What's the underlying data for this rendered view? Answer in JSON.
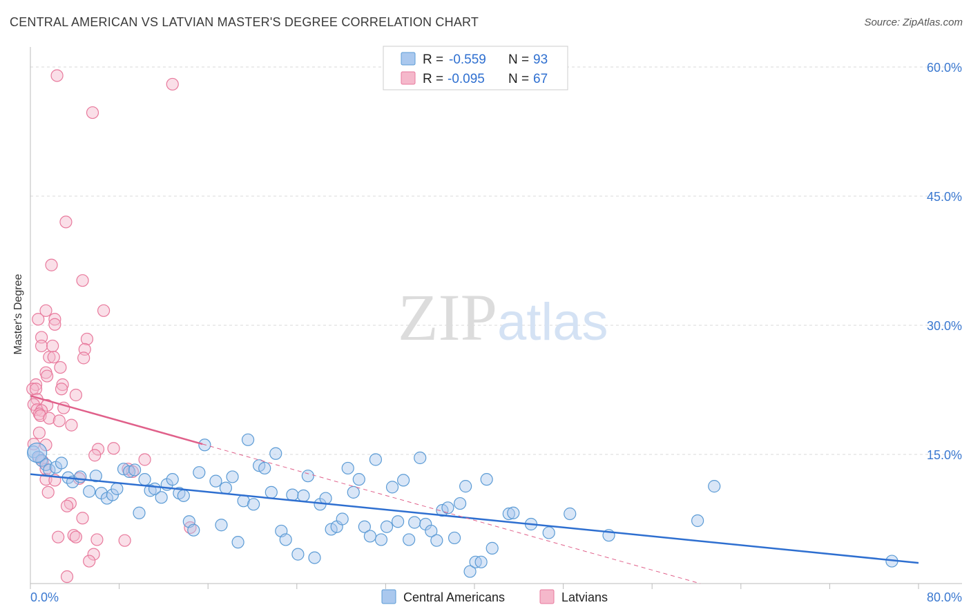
{
  "title": "CENTRAL AMERICAN VS LATVIAN MASTER'S DEGREE CORRELATION CHART",
  "source": "Source: ZipAtlas.com",
  "watermark": {
    "part1": "ZIP",
    "part2": "atlas"
  },
  "colors": {
    "blue": "#5b9bd5",
    "blue_fill": "#aac8ee",
    "blue_line": "#2e6fd0",
    "pink": "#e8799c",
    "pink_fill": "#f5b8cb",
    "pink_line": "#e0608a",
    "axis_text": "#3a78d0",
    "grid": "#d8d8d8"
  },
  "legend": {
    "rows": [
      {
        "r_label": "R =",
        "r_value": "-0.559",
        "n_label": "N =",
        "n_value": "93"
      },
      {
        "r_label": "R =",
        "r_value": "-0.095",
        "n_label": "N =",
        "n_value": "67"
      }
    ],
    "bottom": [
      "Central Americans",
      "Latvians"
    ]
  },
  "chart_data": {
    "type": "scatter",
    "title": "CENTRAL AMERICAN VS LATVIAN MASTER'S DEGREE CORRELATION CHART",
    "xlabel": "",
    "ylabel": "Master's Degree",
    "xlim": [
      0,
      80
    ],
    "ylim": [
      0,
      60
    ],
    "x_tick_labels": [
      "0.0%",
      "80.0%"
    ],
    "y_ticks": [
      15,
      30,
      45,
      60
    ],
    "y_tick_labels": [
      "15.0%",
      "30.0%",
      "45.0%",
      "60.0%"
    ],
    "grid": true,
    "series": [
      {
        "name": "Central Americans",
        "r": -0.559,
        "n": 93,
        "trend": {
          "x1": 0,
          "y1": 12.7,
          "x2": 80,
          "y2": 2.4
        },
        "points": [
          [
            0.3,
            15.3
          ],
          [
            0.7,
            14.7
          ],
          [
            1.0,
            14.3
          ],
          [
            1.4,
            13.8
          ],
          [
            1.7,
            13.2
          ],
          [
            2.3,
            13.5
          ],
          [
            2.8,
            14.0
          ],
          [
            3.4,
            12.3
          ],
          [
            3.8,
            11.8
          ],
          [
            4.5,
            12.4
          ],
          [
            5.3,
            10.7
          ],
          [
            5.9,
            12.5
          ],
          [
            6.4,
            10.5
          ],
          [
            6.9,
            9.9
          ],
          [
            7.4,
            10.3
          ],
          [
            7.8,
            11.0
          ],
          [
            8.4,
            13.3
          ],
          [
            8.9,
            13.0
          ],
          [
            9.4,
            13.2
          ],
          [
            9.8,
            8.2
          ],
          [
            10.3,
            12.1
          ],
          [
            10.8,
            10.8
          ],
          [
            11.2,
            11.0
          ],
          [
            11.8,
            10.0
          ],
          [
            12.3,
            11.5
          ],
          [
            12.8,
            12.1
          ],
          [
            13.4,
            10.5
          ],
          [
            13.8,
            10.2
          ],
          [
            14.3,
            7.2
          ],
          [
            14.7,
            6.2
          ],
          [
            15.2,
            12.9
          ],
          [
            15.7,
            16.1
          ],
          [
            16.7,
            11.9
          ],
          [
            17.2,
            6.8
          ],
          [
            17.6,
            11.1
          ],
          [
            18.2,
            12.4
          ],
          [
            18.7,
            4.8
          ],
          [
            19.2,
            9.6
          ],
          [
            19.6,
            16.7
          ],
          [
            20.1,
            9.2
          ],
          [
            20.6,
            13.7
          ],
          [
            21.1,
            13.4
          ],
          [
            21.7,
            10.6
          ],
          [
            22.1,
            15.1
          ],
          [
            22.6,
            6.1
          ],
          [
            23.0,
            5.1
          ],
          [
            23.6,
            10.3
          ],
          [
            24.1,
            3.4
          ],
          [
            24.6,
            10.2
          ],
          [
            25.0,
            12.5
          ],
          [
            25.6,
            3.0
          ],
          [
            26.1,
            9.2
          ],
          [
            26.6,
            9.9
          ],
          [
            27.1,
            6.3
          ],
          [
            27.6,
            6.6
          ],
          [
            28.1,
            7.5
          ],
          [
            28.6,
            13.4
          ],
          [
            29.1,
            10.6
          ],
          [
            29.6,
            12.1
          ],
          [
            30.1,
            6.6
          ],
          [
            30.6,
            5.5
          ],
          [
            31.1,
            14.4
          ],
          [
            31.6,
            5.1
          ],
          [
            32.1,
            6.6
          ],
          [
            32.6,
            11.2
          ],
          [
            33.1,
            7.2
          ],
          [
            33.6,
            12.0
          ],
          [
            34.1,
            5.1
          ],
          [
            34.6,
            7.1
          ],
          [
            35.1,
            14.6
          ],
          [
            35.6,
            6.9
          ],
          [
            36.1,
            6.1
          ],
          [
            36.6,
            5.0
          ],
          [
            37.1,
            8.5
          ],
          [
            37.6,
            8.8
          ],
          [
            38.2,
            5.3
          ],
          [
            38.7,
            9.3
          ],
          [
            39.2,
            11.3
          ],
          [
            39.6,
            1.4
          ],
          [
            40.1,
            2.5
          ],
          [
            40.6,
            2.5
          ],
          [
            41.1,
            12.1
          ],
          [
            41.6,
            4.1
          ],
          [
            43.1,
            8.1
          ],
          [
            43.5,
            8.2
          ],
          [
            45.1,
            6.9
          ],
          [
            46.7,
            5.9
          ],
          [
            48.6,
            8.1
          ],
          [
            52.1,
            5.6
          ],
          [
            60.1,
            7.3
          ],
          [
            61.6,
            11.3
          ],
          [
            77.6,
            2.6
          ],
          [
            0.6,
            15.2
          ]
        ]
      },
      {
        "name": "Latvians",
        "r": -0.095,
        "n": 67,
        "trend": {
          "x1": 0,
          "y1": 21.8,
          "x2": 15.5,
          "y2": 16.2
        },
        "points": [
          [
            2.4,
            59.0
          ],
          [
            12.8,
            58.0
          ],
          [
            5.6,
            54.7
          ],
          [
            3.2,
            42.0
          ],
          [
            1.9,
            37.0
          ],
          [
            4.7,
            35.2
          ],
          [
            6.6,
            31.7
          ],
          [
            1.4,
            31.7
          ],
          [
            0.7,
            30.7
          ],
          [
            2.2,
            30.7
          ],
          [
            2.2,
            30.1
          ],
          [
            1.0,
            28.6
          ],
          [
            5.1,
            28.4
          ],
          [
            1.0,
            27.6
          ],
          [
            2.0,
            27.6
          ],
          [
            4.9,
            27.2
          ],
          [
            1.7,
            26.3
          ],
          [
            2.1,
            26.3
          ],
          [
            4.8,
            26.2
          ],
          [
            2.7,
            25.1
          ],
          [
            1.4,
            24.5
          ],
          [
            1.5,
            24.1
          ],
          [
            0.5,
            23.1
          ],
          [
            2.9,
            23.1
          ],
          [
            0.2,
            22.6
          ],
          [
            0.5,
            22.6
          ],
          [
            2.8,
            22.6
          ],
          [
            4.1,
            21.9
          ],
          [
            0.6,
            21.4
          ],
          [
            0.3,
            20.8
          ],
          [
            1.5,
            20.7
          ],
          [
            3.0,
            20.4
          ],
          [
            0.6,
            20.2
          ],
          [
            1.0,
            20.1
          ],
          [
            0.8,
            19.7
          ],
          [
            0.9,
            19.5
          ],
          [
            1.7,
            19.2
          ],
          [
            2.6,
            18.9
          ],
          [
            3.7,
            18.4
          ],
          [
            0.8,
            17.5
          ],
          [
            0.3,
            16.2
          ],
          [
            1.4,
            16.1
          ],
          [
            6.1,
            15.6
          ],
          [
            7.5,
            15.7
          ],
          [
            5.8,
            14.9
          ],
          [
            0.8,
            14.6
          ],
          [
            1.1,
            14.2
          ],
          [
            10.3,
            14.4
          ],
          [
            1.4,
            13.3
          ],
          [
            8.8,
            13.3
          ],
          [
            9.2,
            13.0
          ],
          [
            4.4,
            12.2
          ],
          [
            1.4,
            12.1
          ],
          [
            2.2,
            12.0
          ],
          [
            1.6,
            10.6
          ],
          [
            3.6,
            9.3
          ],
          [
            3.3,
            9.0
          ],
          [
            4.7,
            7.6
          ],
          [
            14.4,
            6.5
          ],
          [
            2.5,
            5.4
          ],
          [
            3.9,
            5.6
          ],
          [
            4.1,
            5.4
          ],
          [
            6.0,
            5.1
          ],
          [
            8.5,
            5.0
          ],
          [
            5.7,
            3.4
          ],
          [
            5.3,
            2.6
          ],
          [
            3.3,
            0.8
          ]
        ]
      }
    ]
  }
}
